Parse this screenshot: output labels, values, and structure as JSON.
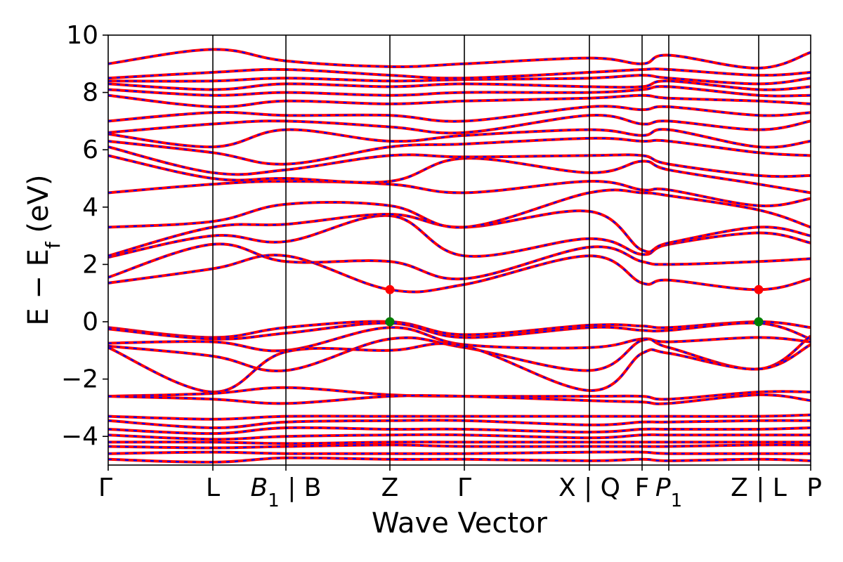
{
  "chart_data": {
    "type": "line",
    "xlabel": "Wave Vector",
    "ylabel": "E − E_f (eV)",
    "ylabel_parts": {
      "main": "E − E",
      "sub": "f",
      "unit": " (eV)"
    },
    "ylim": [
      -5,
      10
    ],
    "yticks": [
      {
        "value": -4,
        "label": "−4"
      },
      {
        "value": -2,
        "label": "−2"
      },
      {
        "value": 0,
        "label": "0"
      },
      {
        "value": 2,
        "label": "2"
      },
      {
        "value": 4,
        "label": "4"
      },
      {
        "value": 6,
        "label": "6"
      },
      {
        "value": 8,
        "label": "8"
      },
      {
        "value": 10,
        "label": "10"
      }
    ],
    "kpath": [
      {
        "x": 0.0,
        "label": "Γ"
      },
      {
        "x": 0.149,
        "label": "L"
      },
      {
        "x": 0.253,
        "label": "B1 | B",
        "main": "B",
        "sub": "1",
        "suffix": " | B"
      },
      {
        "x": 0.401,
        "label": "Z"
      },
      {
        "x": 0.507,
        "label": "Γ"
      },
      {
        "x": 0.685,
        "label": "X | Q"
      },
      {
        "x": 0.76,
        "label": "F"
      },
      {
        "x": 0.798,
        "label": "P1",
        "main": "P",
        "sub": "1"
      },
      {
        "x": 0.926,
        "label": "Z | L"
      },
      {
        "x": 1.0,
        "label": "P"
      }
    ],
    "line_colors": {
      "solid": "#ff0000",
      "dashed": "#0000ff"
    },
    "band_edges": [
      {
        "kind": "VBM",
        "x": 0.401,
        "y": 0.0,
        "color": "#008000"
      },
      {
        "kind": "VBM",
        "x": 0.926,
        "y": 0.0,
        "color": "#008000"
      },
      {
        "kind": "CBM",
        "x": 0.401,
        "y": 1.12,
        "color": "#ff0000"
      },
      {
        "kind": "CBM",
        "x": 0.926,
        "y": 1.12,
        "color": "#ff0000"
      }
    ],
    "bands": [
      {
        "name": "v1",
        "x": [
          0,
          0.149,
          0.253,
          0.401,
          0.507,
          0.685,
          0.76,
          0.798,
          0.926,
          1.0
        ],
        "y": [
          -0.2,
          -0.55,
          -0.2,
          0.0,
          -0.45,
          -0.12,
          -0.15,
          -0.2,
          0.0,
          -0.2
        ]
      },
      {
        "name": "v2",
        "x": [
          0,
          0.149,
          0.253,
          0.401,
          0.507,
          0.685,
          0.76,
          0.798,
          0.926,
          1.0
        ],
        "y": [
          -0.25,
          -0.6,
          -0.4,
          -0.05,
          -0.55,
          -0.2,
          -0.3,
          -0.3,
          -0.05,
          -0.6
        ]
      },
      {
        "name": "v3",
        "x": [
          0,
          0.149,
          0.253,
          0.401,
          0.507,
          0.685,
          0.76,
          0.798,
          0.926,
          1.0
        ],
        "y": [
          -0.75,
          -0.7,
          -1.0,
          -0.2,
          -0.8,
          -0.9,
          -0.6,
          -0.7,
          -0.55,
          -0.7
        ]
      },
      {
        "name": "v4",
        "x": [
          0,
          0.149,
          0.253,
          0.401,
          0.507,
          0.685,
          0.76,
          0.798,
          0.926,
          1.0
        ],
        "y": [
          -0.85,
          -1.2,
          -1.7,
          -0.6,
          -0.9,
          -1.7,
          -0.65,
          -0.9,
          -1.65,
          -0.5
        ]
      },
      {
        "name": "v5",
        "x": [
          0,
          0.149,
          0.253,
          0.401,
          0.507,
          0.685,
          0.76,
          0.798,
          0.926,
          1.0
        ],
        "y": [
          -0.9,
          -2.45,
          -1.05,
          -1.0,
          -0.85,
          -2.4,
          -1.1,
          -1.1,
          -1.65,
          -0.8
        ]
      },
      {
        "name": "v6",
        "x": [
          0,
          0.149,
          0.253,
          0.401,
          0.507,
          0.685,
          0.76,
          0.798,
          0.926,
          1.0
        ],
        "y": [
          -2.6,
          -2.5,
          -2.3,
          -2.55,
          -2.6,
          -2.6,
          -2.6,
          -2.7,
          -2.45,
          -2.45
        ]
      },
      {
        "name": "v7",
        "x": [
          0,
          0.149,
          0.253,
          0.401,
          0.507,
          0.685,
          0.76,
          0.798,
          0.926,
          1.0
        ],
        "y": [
          -2.6,
          -2.7,
          -2.85,
          -2.6,
          -2.6,
          -2.75,
          -2.8,
          -2.85,
          -2.55,
          -2.75
        ]
      },
      {
        "name": "v8",
        "x": [
          0,
          0.149,
          0.253,
          0.401,
          0.507,
          0.685,
          0.76,
          0.798,
          0.926,
          1.0
        ],
        "y": [
          -3.3,
          -3.4,
          -3.3,
          -3.3,
          -3.3,
          -3.3,
          -3.3,
          -3.3,
          -3.3,
          -3.25
        ]
      },
      {
        "name": "v9",
        "x": [
          0,
          0.149,
          0.253,
          0.401,
          0.507,
          0.685,
          0.76,
          0.798,
          0.926,
          1.0
        ],
        "y": [
          -3.45,
          -3.7,
          -3.5,
          -3.45,
          -3.45,
          -3.6,
          -3.5,
          -3.5,
          -3.45,
          -3.45
        ]
      },
      {
        "name": "v10",
        "x": [
          0,
          0.149,
          0.253,
          0.401,
          0.507,
          0.685,
          0.76,
          0.798,
          0.926,
          1.0
        ],
        "y": [
          -3.75,
          -3.9,
          -3.7,
          -3.75,
          -3.75,
          -3.85,
          -3.75,
          -3.75,
          -3.75,
          -3.7
        ]
      },
      {
        "name": "v11",
        "x": [
          0,
          0.149,
          0.253,
          0.401,
          0.507,
          0.685,
          0.76,
          0.798,
          0.926,
          1.0
        ],
        "y": [
          -3.95,
          -4.1,
          -4.0,
          -3.95,
          -3.95,
          -4.05,
          -3.95,
          -3.95,
          -3.95,
          -3.95
        ]
      },
      {
        "name": "v12",
        "x": [
          0,
          0.149,
          0.253,
          0.401,
          0.507,
          0.685,
          0.76,
          0.798,
          0.926,
          1.0
        ],
        "y": [
          -4.2,
          -4.2,
          -4.25,
          -4.2,
          -4.2,
          -4.2,
          -4.2,
          -4.2,
          -4.2,
          -4.2
        ]
      },
      {
        "name": "v13",
        "x": [
          0,
          0.149,
          0.253,
          0.401,
          0.507,
          0.685,
          0.76,
          0.798,
          0.926,
          1.0
        ],
        "y": [
          -4.35,
          -4.4,
          -4.35,
          -4.3,
          -4.35,
          -4.35,
          -4.35,
          -4.35,
          -4.3,
          -4.3
        ]
      },
      {
        "name": "v14",
        "x": [
          0,
          0.149,
          0.253,
          0.401,
          0.507,
          0.685,
          0.76,
          0.798,
          0.926,
          1.0
        ],
        "y": [
          -4.6,
          -4.55,
          -4.6,
          -4.6,
          -4.6,
          -4.55,
          -4.55,
          -4.6,
          -4.6,
          -4.6
        ]
      },
      {
        "name": "v15",
        "x": [
          0,
          0.149,
          0.253,
          0.401,
          0.507,
          0.685,
          0.76,
          0.798,
          0.926,
          1.0
        ],
        "y": [
          -4.8,
          -4.9,
          -4.75,
          -4.8,
          -4.8,
          -4.85,
          -4.8,
          -4.85,
          -4.8,
          -4.85
        ]
      },
      {
        "name": "c1",
        "x": [
          0,
          0.149,
          0.253,
          0.401,
          0.507,
          0.685,
          0.76,
          0.798,
          0.926,
          1.0
        ],
        "y": [
          1.35,
          1.85,
          2.3,
          1.12,
          1.3,
          2.3,
          1.35,
          1.45,
          1.12,
          1.5
        ]
      },
      {
        "name": "c2",
        "x": [
          0,
          0.149,
          0.253,
          0.401,
          0.507,
          0.685,
          0.76,
          0.798,
          0.926,
          1.0
        ],
        "y": [
          1.55,
          2.7,
          2.1,
          2.1,
          1.5,
          2.6,
          2.1,
          2.0,
          2.1,
          2.2
        ]
      },
      {
        "name": "c3",
        "x": [
          0,
          0.149,
          0.253,
          0.401,
          0.507,
          0.685,
          0.76,
          0.798,
          0.926,
          1.0
        ],
        "y": [
          2.25,
          3.0,
          2.8,
          3.7,
          2.3,
          2.9,
          2.35,
          2.7,
          3.1,
          2.75
        ]
      },
      {
        "name": "c4",
        "x": [
          0,
          0.149,
          0.253,
          0.401,
          0.507,
          0.685,
          0.76,
          0.798,
          0.926,
          1.0
        ],
        "y": [
          2.3,
          3.3,
          3.4,
          3.75,
          3.3,
          3.85,
          2.5,
          2.75,
          3.3,
          3.0
        ]
      },
      {
        "name": "c5",
        "x": [
          0,
          0.149,
          0.253,
          0.401,
          0.507,
          0.685,
          0.76,
          0.798,
          0.926,
          1.0
        ],
        "y": [
          3.3,
          3.5,
          4.1,
          4.05,
          3.3,
          4.5,
          4.5,
          4.4,
          3.9,
          3.3
        ]
      },
      {
        "name": "c6",
        "x": [
          0,
          0.149,
          0.253,
          0.401,
          0.507,
          0.685,
          0.76,
          0.798,
          0.926,
          1.0
        ],
        "y": [
          4.5,
          4.8,
          4.9,
          4.8,
          4.5,
          4.9,
          4.6,
          4.6,
          4.05,
          4.3
        ]
      },
      {
        "name": "c7",
        "x": [
          0,
          0.149,
          0.253,
          0.401,
          0.507,
          0.685,
          0.76,
          0.798,
          0.926,
          1.0
        ],
        "y": [
          5.8,
          5.0,
          5.0,
          4.9,
          5.7,
          5.2,
          5.6,
          5.3,
          4.8,
          4.5
        ]
      },
      {
        "name": "c8",
        "x": [
          0,
          0.149,
          0.253,
          0.401,
          0.507,
          0.685,
          0.76,
          0.798,
          0.926,
          1.0
        ],
        "y": [
          6.1,
          5.2,
          5.3,
          5.8,
          5.75,
          5.8,
          5.8,
          5.5,
          5.1,
          5.1
        ]
      },
      {
        "name": "c9",
        "x": [
          0,
          0.149,
          0.253,
          0.401,
          0.507,
          0.685,
          0.76,
          0.798,
          0.926,
          1.0
        ],
        "y": [
          6.3,
          5.9,
          5.5,
          6.1,
          6.2,
          6.4,
          6.3,
          6.3,
          5.9,
          5.8
        ]
      },
      {
        "name": "c10",
        "x": [
          0,
          0.149,
          0.253,
          0.401,
          0.507,
          0.685,
          0.76,
          0.798,
          0.926,
          1.0
        ],
        "y": [
          6.55,
          6.1,
          6.7,
          6.3,
          6.5,
          6.7,
          6.5,
          6.7,
          6.1,
          6.3
        ]
      },
      {
        "name": "c11",
        "x": [
          0,
          0.149,
          0.253,
          0.401,
          0.507,
          0.685,
          0.76,
          0.798,
          0.926,
          1.0
        ],
        "y": [
          6.6,
          6.9,
          7.0,
          6.8,
          6.6,
          7.2,
          6.9,
          7.0,
          6.7,
          7.0
        ]
      },
      {
        "name": "c12",
        "x": [
          0,
          0.149,
          0.253,
          0.401,
          0.507,
          0.685,
          0.76,
          0.798,
          0.926,
          1.0
        ],
        "y": [
          7.0,
          7.3,
          7.2,
          7.2,
          7.0,
          7.5,
          7.4,
          7.5,
          7.2,
          7.3
        ]
      },
      {
        "name": "c13",
        "x": [
          0,
          0.149,
          0.253,
          0.401,
          0.507,
          0.685,
          0.76,
          0.798,
          0.926,
          1.0
        ],
        "y": [
          7.9,
          7.5,
          7.7,
          7.6,
          7.7,
          7.8,
          7.9,
          7.8,
          7.7,
          7.6
        ]
      },
      {
        "name": "c14",
        "x": [
          0,
          0.149,
          0.253,
          0.401,
          0.507,
          0.685,
          0.76,
          0.798,
          0.926,
          1.0
        ],
        "y": [
          8.1,
          7.9,
          8.0,
          7.9,
          8.0,
          8.0,
          8.1,
          8.2,
          7.9,
          7.9
        ]
      },
      {
        "name": "c15",
        "x": [
          0,
          0.149,
          0.253,
          0.401,
          0.507,
          0.685,
          0.76,
          0.798,
          0.926,
          1.0
        ],
        "y": [
          8.3,
          8.1,
          8.3,
          8.2,
          8.3,
          8.2,
          8.2,
          8.4,
          8.1,
          8.2
        ]
      },
      {
        "name": "c16",
        "x": [
          0,
          0.149,
          0.253,
          0.401,
          0.507,
          0.685,
          0.76,
          0.798,
          0.926,
          1.0
        ],
        "y": [
          8.4,
          8.4,
          8.5,
          8.4,
          8.45,
          8.5,
          8.6,
          8.5,
          8.3,
          8.5
        ]
      },
      {
        "name": "c17",
        "x": [
          0,
          0.149,
          0.253,
          0.401,
          0.507,
          0.685,
          0.76,
          0.798,
          0.926,
          1.0
        ],
        "y": [
          8.5,
          8.7,
          8.8,
          8.6,
          8.5,
          8.7,
          8.8,
          8.8,
          8.6,
          8.7
        ]
      },
      {
        "name": "c18",
        "x": [
          0,
          0.149,
          0.253,
          0.401,
          0.507,
          0.685,
          0.76,
          0.798,
          0.926,
          1.0
        ],
        "y": [
          9.0,
          9.5,
          9.1,
          8.9,
          9.0,
          9.2,
          9.0,
          9.3,
          8.85,
          9.4
        ]
      }
    ]
  }
}
